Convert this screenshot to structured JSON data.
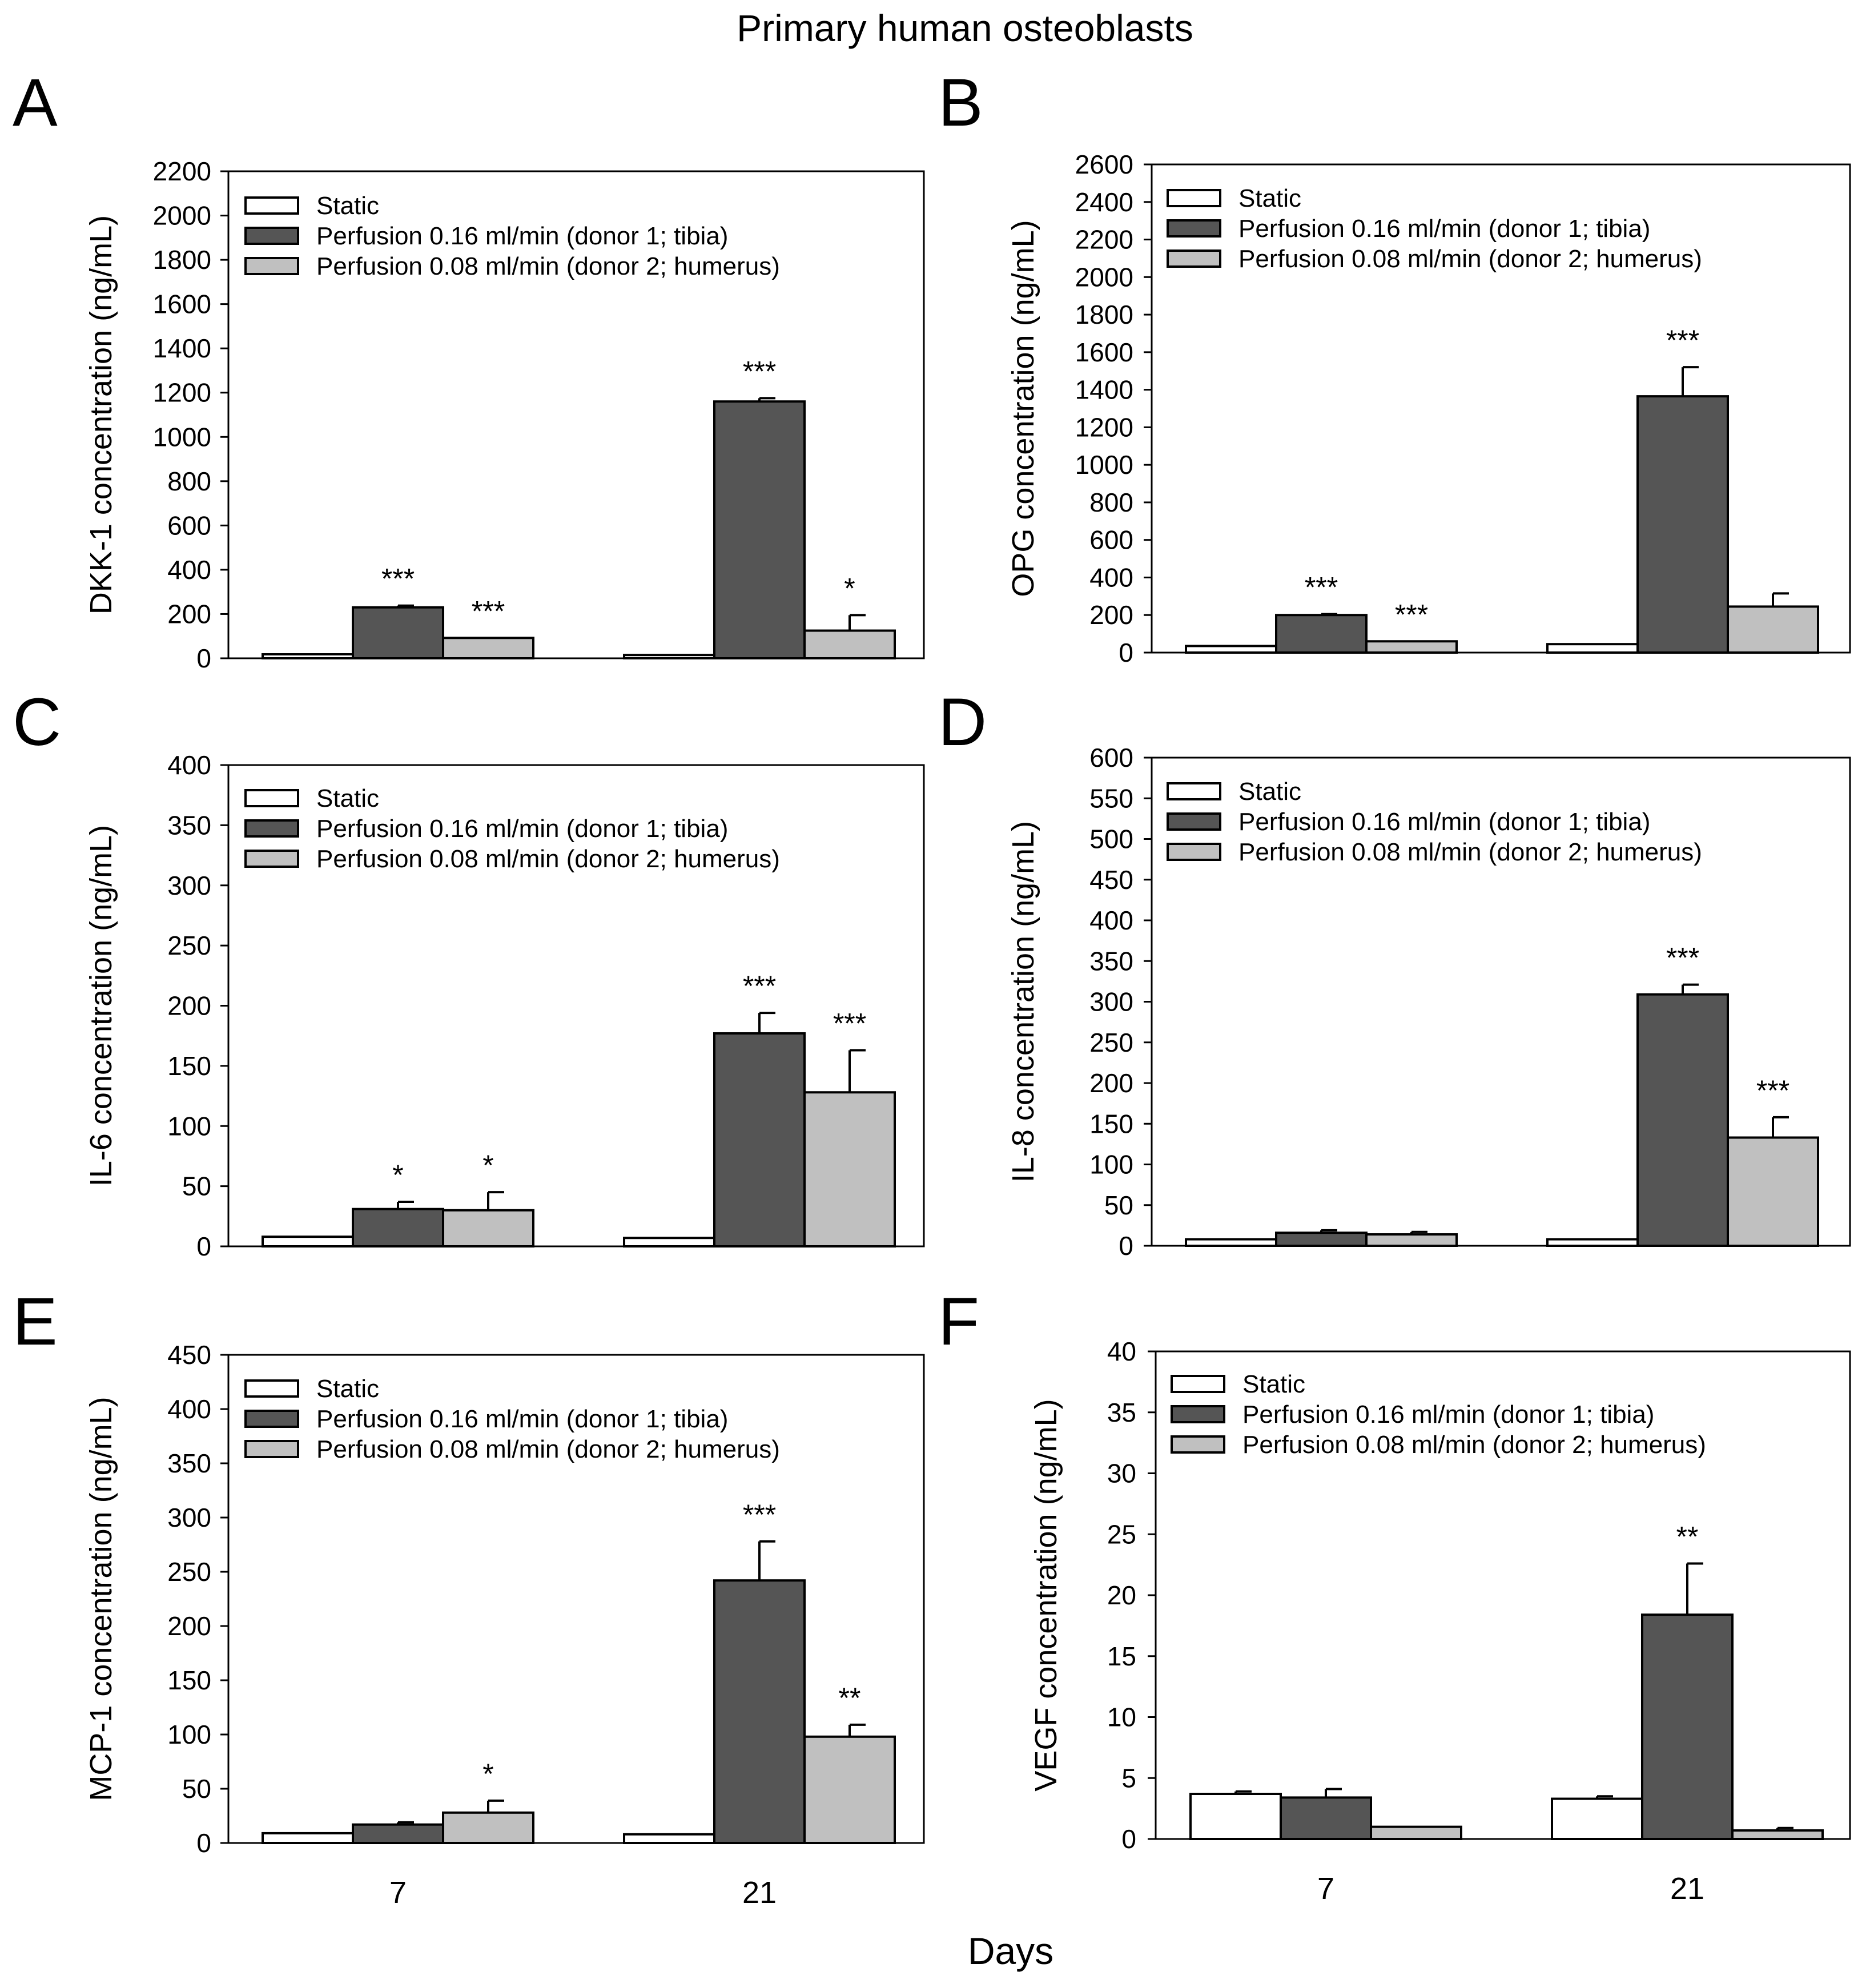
{
  "figure_title": "Primary human osteoblasts",
  "x_axis_title": "Days",
  "colors": {
    "static": "#ffffff",
    "perfusion_016": "#555555",
    "perfusion_008": "#c0c0c0",
    "stroke": "#000000"
  },
  "chart_data": [
    {
      "panel": "A",
      "type": "bar",
      "ylabel": "DKK-1 concentration (ng/mL)",
      "ylim": [
        0,
        2200
      ],
      "ytick_step": 200,
      "categories": [
        "7",
        "21"
      ],
      "show_x_ticks": false,
      "legend": [
        "Static",
        "Perfusion 0.16 ml/min (donor 1; tibia)",
        "Perfusion 0.08 ml/min (donor 2; humerus)"
      ],
      "series": [
        {
          "name": "Static",
          "values": [
            18,
            15
          ],
          "errors": [
            0,
            0
          ],
          "sig": [
            "",
            ""
          ]
        },
        {
          "name": "Perfusion 0.16 ml/min (donor 1; tibia)",
          "values": [
            230,
            1160
          ],
          "errors": [
            8,
            15
          ],
          "sig": [
            "***",
            "***"
          ]
        },
        {
          "name": "Perfusion 0.08 ml/min (donor 2; humerus)",
          "values": [
            92,
            125
          ],
          "errors": [
            0,
            70
          ],
          "sig": [
            "***",
            "*"
          ]
        }
      ]
    },
    {
      "panel": "B",
      "type": "bar",
      "ylabel": "OPG concentration (ng/mL)",
      "ylim": [
        0,
        2600
      ],
      "ytick_step": 200,
      "categories": [
        "7",
        "21"
      ],
      "show_x_ticks": false,
      "legend": [
        "Static",
        "Perfusion 0.16 ml/min (donor 1; tibia)",
        "Perfusion 0.08 ml/min (donor 2; humerus)"
      ],
      "series": [
        {
          "name": "Static",
          "values": [
            35,
            45
          ],
          "errors": [
            0,
            0
          ],
          "sig": [
            "",
            ""
          ]
        },
        {
          "name": "Perfusion 0.16 ml/min (donor 1; tibia)",
          "values": [
            200,
            1365
          ],
          "errors": [
            5,
            155
          ],
          "sig": [
            "***",
            "***"
          ]
        },
        {
          "name": "Perfusion 0.08 ml/min (donor 2; humerus)",
          "values": [
            60,
            245
          ],
          "errors": [
            0,
            70
          ],
          "sig": [
            "***",
            ""
          ]
        }
      ]
    },
    {
      "panel": "C",
      "type": "bar",
      "ylabel": "IL-6 concentration (ng/mL)",
      "ylim": [
        0,
        400
      ],
      "ytick_step": 50,
      "categories": [
        "7",
        "21"
      ],
      "show_x_ticks": false,
      "legend": [
        "Static",
        "Perfusion 0.16 ml/min (donor 1; tibia)",
        "Perfusion 0.08 ml/min (donor 2; humerus)"
      ],
      "series": [
        {
          "name": "Static",
          "values": [
            8,
            7
          ],
          "errors": [
            0,
            0
          ],
          "sig": [
            "",
            ""
          ]
        },
        {
          "name": "Perfusion 0.16 ml/min (donor 1; tibia)",
          "values": [
            31,
            177
          ],
          "errors": [
            6,
            17
          ],
          "sig": [
            "*",
            "***"
          ]
        },
        {
          "name": "Perfusion 0.08 ml/min (donor 2; humerus)",
          "values": [
            30,
            128
          ],
          "errors": [
            15,
            35
          ],
          "sig": [
            "*",
            "***"
          ]
        }
      ]
    },
    {
      "panel": "D",
      "type": "bar",
      "ylabel": "IL-8 concentration (ng/mL)",
      "ylim": [
        0,
        600
      ],
      "ytick_step": 50,
      "categories": [
        "7",
        "21"
      ],
      "show_x_ticks": false,
      "legend": [
        "Static",
        "Perfusion 0.16 ml/min (donor 1; tibia)",
        "Perfusion 0.08 ml/min (donor 2; humerus)"
      ],
      "series": [
        {
          "name": "Static",
          "values": [
            8,
            8
          ],
          "errors": [
            0,
            0
          ],
          "sig": [
            "",
            ""
          ]
        },
        {
          "name": "Perfusion 0.16 ml/min (donor 1; tibia)",
          "values": [
            16,
            309
          ],
          "errors": [
            3,
            12
          ],
          "sig": [
            "",
            "***"
          ]
        },
        {
          "name": "Perfusion 0.08 ml/min (donor 2; humerus)",
          "values": [
            14,
            133
          ],
          "errors": [
            3,
            25
          ],
          "sig": [
            "",
            "***"
          ]
        }
      ]
    },
    {
      "panel": "E",
      "type": "bar",
      "ylabel": "MCP-1 concentration (ng/mL)",
      "ylim": [
        0,
        450
      ],
      "ytick_step": 50,
      "categories": [
        "7",
        "21"
      ],
      "show_x_ticks": true,
      "legend": [
        "Static",
        "Perfusion 0.16 ml/min (donor 1; tibia)",
        "Perfusion 0.08 ml/min (donor 2; humerus)"
      ],
      "series": [
        {
          "name": "Static",
          "values": [
            9,
            8
          ],
          "errors": [
            0,
            0
          ],
          "sig": [
            "",
            ""
          ]
        },
        {
          "name": "Perfusion 0.16 ml/min (donor 1; tibia)",
          "values": [
            17,
            242
          ],
          "errors": [
            2,
            36
          ],
          "sig": [
            "",
            "***"
          ]
        },
        {
          "name": "Perfusion 0.08 ml/min (donor 2; humerus)",
          "values": [
            28,
            98
          ],
          "errors": [
            11,
            11
          ],
          "sig": [
            "*",
            "**"
          ]
        }
      ]
    },
    {
      "panel": "F",
      "type": "bar",
      "ylabel": "VEGF concentration (ng/mL)",
      "ylim": [
        0,
        40
      ],
      "ytick_step": 5,
      "categories": [
        "7",
        "21"
      ],
      "show_x_ticks": true,
      "legend": [
        "Static",
        "Perfusion 0.16 ml/min (donor 1; tibia)",
        "Perfusion 0.08 ml/min (donor 2; humerus)"
      ],
      "series": [
        {
          "name": "Static",
          "values": [
            3.7,
            3.3
          ],
          "errors": [
            0.2,
            0.2
          ],
          "sig": [
            "",
            ""
          ]
        },
        {
          "name": "Perfusion 0.16 ml/min (donor 1; tibia)",
          "values": [
            3.4,
            18.4
          ],
          "errors": [
            0.7,
            4.2
          ],
          "sig": [
            "",
            "**"
          ]
        },
        {
          "name": "Perfusion 0.08 ml/min (donor 2; humerus)",
          "values": [
            1.0,
            0.7
          ],
          "errors": [
            0,
            0.2
          ],
          "sig": [
            "",
            ""
          ]
        }
      ]
    }
  ]
}
